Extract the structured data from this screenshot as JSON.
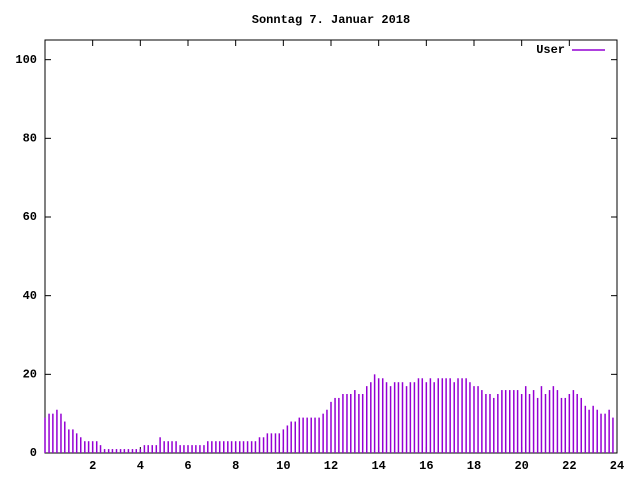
{
  "chart_data": {
    "type": "impulses",
    "title": "Sonntag 7. Januar 2018",
    "xlim": [
      0,
      24
    ],
    "xticks": [
      2,
      4,
      6,
      8,
      10,
      12,
      14,
      16,
      18,
      20,
      22,
      24
    ],
    "ylim": [
      0,
      105
    ],
    "yticks": [
      0,
      20,
      40,
      60,
      80,
      100
    ],
    "legend": "top-right",
    "grid": false,
    "x": [
      0,
      0.17,
      0.33,
      0.5,
      0.67,
      0.83,
      1,
      1.17,
      1.33,
      1.5,
      1.67,
      1.83,
      2,
      2.17,
      2.33,
      2.5,
      2.67,
      2.83,
      3,
      3.17,
      3.33,
      3.5,
      3.67,
      3.83,
      4,
      4.17,
      4.33,
      4.5,
      4.67,
      4.83,
      5,
      5.17,
      5.33,
      5.5,
      5.67,
      5.83,
      6,
      6.17,
      6.33,
      6.5,
      6.67,
      6.83,
      7,
      7.17,
      7.33,
      7.5,
      7.67,
      7.83,
      8,
      8.17,
      8.33,
      8.5,
      8.67,
      8.83,
      9,
      9.17,
      9.33,
      9.5,
      9.67,
      9.83,
      10,
      10.17,
      10.33,
      10.5,
      10.67,
      10.83,
      11,
      11.17,
      11.33,
      11.5,
      11.67,
      11.83,
      12,
      12.17,
      12.33,
      12.5,
      12.67,
      12.83,
      13,
      13.17,
      13.33,
      13.5,
      13.67,
      13.83,
      14,
      14.17,
      14.33,
      14.5,
      14.67,
      14.83,
      15,
      15.17,
      15.33,
      15.5,
      15.67,
      15.83,
      16,
      16.17,
      16.33,
      16.5,
      16.67,
      16.83,
      17,
      17.17,
      17.33,
      17.5,
      17.67,
      17.83,
      18,
      18.17,
      18.33,
      18.5,
      18.67,
      18.83,
      19,
      19.17,
      19.33,
      19.5,
      19.67,
      19.83,
      20,
      20.17,
      20.33,
      20.5,
      20.67,
      20.83,
      21,
      21.17,
      21.33,
      21.5,
      21.67,
      21.83,
      22,
      22.17,
      22.33,
      22.5,
      22.67,
      22.83,
      23,
      23.17,
      23.33,
      23.5,
      23.67,
      23.83
    ],
    "series": [
      {
        "name": "User",
        "color": "#9400d3",
        "values": [
          9,
          10,
          10,
          11,
          10,
          8,
          6,
          6,
          5,
          4,
          3,
          3,
          3,
          3,
          2,
          1,
          1,
          1,
          1,
          1,
          1,
          1,
          1,
          1,
          1,
          2,
          2,
          2,
          2,
          4,
          3,
          3,
          3,
          3,
          2,
          2,
          2,
          2,
          2,
          2,
          2,
          3,
          3,
          3,
          3,
          3,
          3,
          3,
          3,
          3,
          3,
          3,
          3,
          3,
          4,
          4,
          5,
          5,
          5,
          5,
          6,
          7,
          8,
          8,
          9,
          9,
          9,
          9,
          9,
          9,
          10,
          11,
          13,
          14,
          14,
          15,
          15,
          15,
          16,
          15,
          15,
          17,
          18,
          20,
          19,
          19,
          18,
          17,
          18,
          18,
          18,
          17,
          18,
          18,
          19,
          19,
          18,
          19,
          18,
          19,
          19,
          19,
          19,
          18,
          19,
          19,
          19,
          18,
          17,
          17,
          16,
          15,
          15,
          14,
          15,
          16,
          16,
          16,
          16,
          16,
          15,
          17,
          15,
          16,
          14,
          17,
          15,
          16,
          17,
          16,
          14,
          14,
          15,
          16,
          15,
          14,
          12,
          11,
          12,
          11,
          10,
          10,
          11,
          9
        ]
      }
    ]
  }
}
